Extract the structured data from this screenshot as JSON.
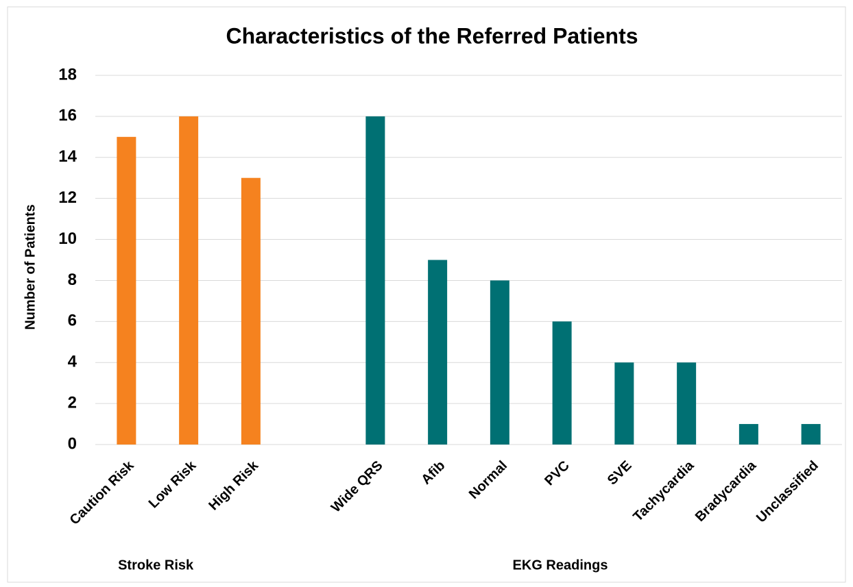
{
  "chart_data": {
    "type": "bar",
    "title": "Characteristics of the Referred Patients",
    "y_label": "Number of Patients",
    "categories": [
      "Caution Risk",
      "Low Risk",
      "High Risk",
      null,
      "Wide QRS",
      "Afib",
      "Normal",
      "PVC",
      "SVE",
      "Tachycardia",
      "Bradycardia",
      "Unclassified"
    ],
    "series": [
      {
        "name": "Stroke Risk",
        "color": "#f5821f",
        "values": [
          15,
          16,
          13,
          null,
          null,
          null,
          null,
          null,
          null,
          null,
          null,
          null
        ]
      },
      {
        "name": "EKG Readings",
        "color": "#007073",
        "values": [
          null,
          null,
          null,
          null,
          16,
          9,
          8,
          6,
          4,
          4,
          1,
          1
        ]
      }
    ],
    "ylim": [
      0,
      18
    ],
    "yticks": [
      0,
      2,
      4,
      6,
      8,
      10,
      12,
      14,
      16,
      18
    ],
    "grid": true
  }
}
